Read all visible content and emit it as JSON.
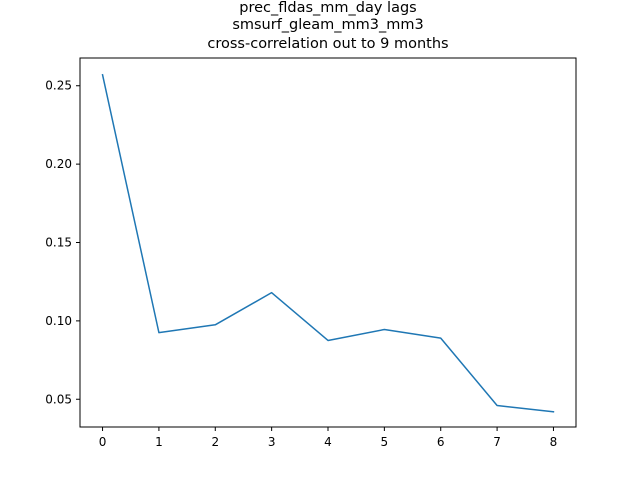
{
  "chart_data": {
    "type": "line",
    "title_lines": [
      "prec_fldas_mm_day lags",
      "smsurf_gleam_mm3_mm3",
      "cross-correlation out to 9 months"
    ],
    "xlabel": "",
    "ylabel": "",
    "x": [
      0,
      1,
      2,
      3,
      4,
      5,
      6,
      7,
      8
    ],
    "series": [
      {
        "values": [
          0.257,
          0.0925,
          0.0975,
          0.118,
          0.0875,
          0.0945,
          0.089,
          0.046,
          0.042
        ],
        "color": "#1f77b4"
      }
    ],
    "xlim": [
      -0.4,
      8.4
    ],
    "ylim": [
      0.0323,
      0.2677
    ],
    "xticks": [
      0,
      1,
      2,
      3,
      4,
      5,
      6,
      7,
      8
    ],
    "xtick_labels": [
      "0",
      "1",
      "2",
      "3",
      "4",
      "5",
      "6",
      "7",
      "8"
    ],
    "yticks": [
      0.05,
      0.1,
      0.15,
      0.2,
      0.25
    ],
    "ytick_labels": [
      "0.05",
      "0.10",
      "0.15",
      "0.20",
      "0.25"
    ],
    "grid": false,
    "legend": "none"
  }
}
